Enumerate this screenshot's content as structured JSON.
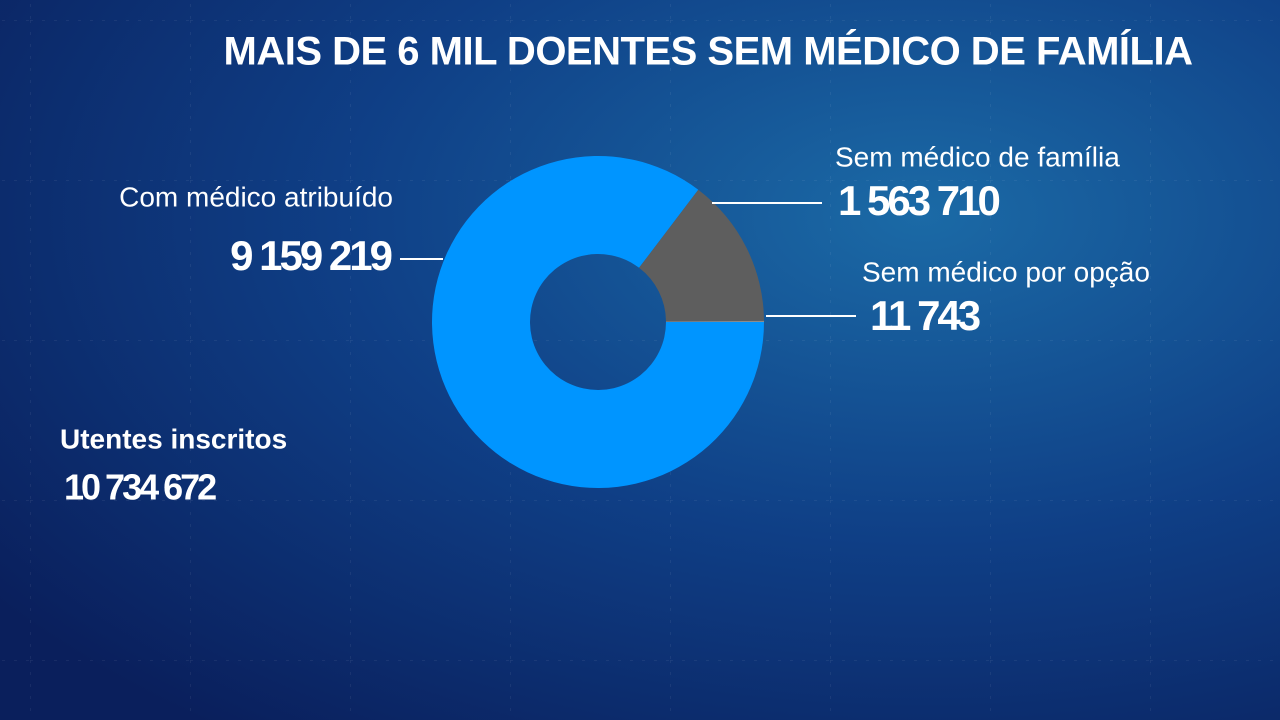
{
  "chart_data": {
    "type": "pie",
    "donut": true,
    "title": "MAIS DE 6 MIL DOENTES SEM MÉDICO DE FAMÍLIA",
    "categories": [
      "Com médico atribuído",
      "Sem médico de família",
      "Sem médico por opção"
    ],
    "values": [
      9159219,
      1563710,
      11743
    ],
    "value_labels": [
      "9 159 219",
      "1 563 710",
      "11 743"
    ],
    "colors": [
      "#0095ff",
      "#5e5e5e",
      "#8c8c8c"
    ],
    "total": {
      "label": "Utentes inscritos",
      "value": 10734672,
      "value_label": "10 734 672"
    }
  }
}
